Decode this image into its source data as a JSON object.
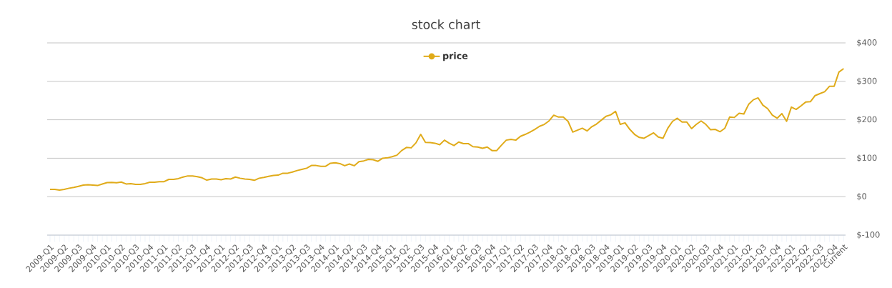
{
  "chart_data": {
    "type": "line",
    "title": "stock chart",
    "categories": [
      "2009-Q1",
      null,
      null,
      "2009-Q2",
      null,
      null,
      "2009-Q3",
      null,
      null,
      "2009-Q4",
      null,
      null,
      "2010-Q1",
      null,
      null,
      "2010-Q2",
      null,
      null,
      "2010-Q3",
      null,
      null,
      "2010-Q4",
      null,
      null,
      "2011-Q1",
      null,
      null,
      "2011-Q2",
      null,
      null,
      "2011-Q3",
      null,
      null,
      "2011-Q4",
      null,
      null,
      "2012-Q1",
      null,
      null,
      "2012-Q2",
      null,
      null,
      "2012-Q3",
      null,
      null,
      "2012-Q4",
      null,
      null,
      "2013-Q1",
      null,
      null,
      "2013-Q2",
      null,
      null,
      "2013-Q3",
      null,
      null,
      "2013-Q4",
      null,
      null,
      "2014-Q1",
      null,
      null,
      "2014-Q2",
      null,
      null,
      "2014-Q3",
      null,
      null,
      "2014-Q4",
      null,
      null,
      "2015-Q1",
      null,
      null,
      "2015-Q2",
      null,
      null,
      "2015-Q3",
      null,
      null,
      "2015-Q4",
      null,
      null,
      "2016-Q1",
      null,
      null,
      "2016-Q2",
      null,
      null,
      "2016-Q3",
      null,
      null,
      "2016-Q4",
      null,
      null,
      "2017-Q1",
      null,
      null,
      "2017-Q2",
      null,
      null,
      "2017-Q3",
      null,
      null,
      "2017-Q4",
      null,
      null,
      "2018-Q1",
      null,
      null,
      "2018-Q2",
      null,
      null,
      "2018-Q3",
      null,
      null,
      "2018-Q4",
      null,
      null,
      "2019-Q1",
      null,
      null,
      "2019-Q2",
      null,
      null,
      "2019-Q3",
      null,
      null,
      "2019-Q4",
      null,
      null,
      "2020-Q1",
      null,
      null,
      "2020-Q2",
      null,
      null,
      "2020-Q3",
      null,
      null,
      "2020-Q4",
      null,
      null,
      "2021-Q1",
      null,
      null,
      "2021-Q2",
      null,
      null,
      "2021-Q3",
      null,
      null,
      "2021-Q4",
      null,
      null,
      "2022-Q1",
      null,
      null,
      "2022-Q2",
      null,
      null,
      "2022-Q3",
      null,
      null,
      "2022-Q4",
      null,
      "Current"
    ],
    "series": [
      {
        "name": "price",
        "color": "#e0ab1a",
        "values": [
          19,
          19,
          17,
          19,
          22,
          24,
          27,
          30,
          31,
          30,
          29,
          33,
          36.5,
          37,
          36,
          38,
          33,
          34,
          32,
          32,
          34,
          37.5,
          37.5,
          39,
          39,
          45,
          45,
          47,
          51,
          54,
          54,
          52,
          49,
          43,
          46,
          46,
          44,
          47,
          46,
          51,
          48,
          46,
          45,
          42.5,
          48,
          50,
          53,
          55,
          56,
          61,
          61,
          64,
          68,
          71,
          74,
          81,
          81,
          79,
          79,
          87,
          88,
          86,
          80.5,
          85,
          80.5,
          91,
          93,
          97,
          96,
          92,
          100,
          101,
          104,
          108,
          120,
          128,
          127,
          140,
          162,
          141,
          140.5,
          139,
          135,
          147,
          139,
          133,
          142,
          138,
          138,
          130,
          129,
          126,
          129,
          120,
          120,
          134,
          147,
          149,
          147,
          157,
          162,
          168,
          175,
          183,
          188,
          197,
          212,
          207,
          207,
          196,
          168,
          173,
          178,
          171,
          182,
          189,
          199,
          209,
          213,
          222,
          188,
          192,
          175,
          162,
          154,
          152,
          159,
          166,
          155,
          152,
          178,
          196,
          204,
          194,
          194,
          177,
          188,
          197,
          188,
          174,
          175,
          169,
          178,
          207,
          206,
          217,
          215,
          240,
          252,
          257,
          238,
          229,
          212,
          204,
          216,
          196,
          233,
          227,
          236,
          246,
          247,
          263,
          268,
          273,
          287,
          287,
          324,
          333
        ]
      }
    ],
    "ylim": [
      -100,
      400
    ],
    "yticks": [
      {
        "value": -100,
        "label": "$-100"
      },
      {
        "value": 0,
        "label": "$0"
      },
      {
        "value": 100,
        "label": "$100"
      },
      {
        "value": 200,
        "label": "$200"
      },
      {
        "value": 300,
        "label": "$300"
      },
      {
        "value": 400,
        "label": "$400"
      }
    ],
    "grid": "y",
    "legend": "top"
  }
}
